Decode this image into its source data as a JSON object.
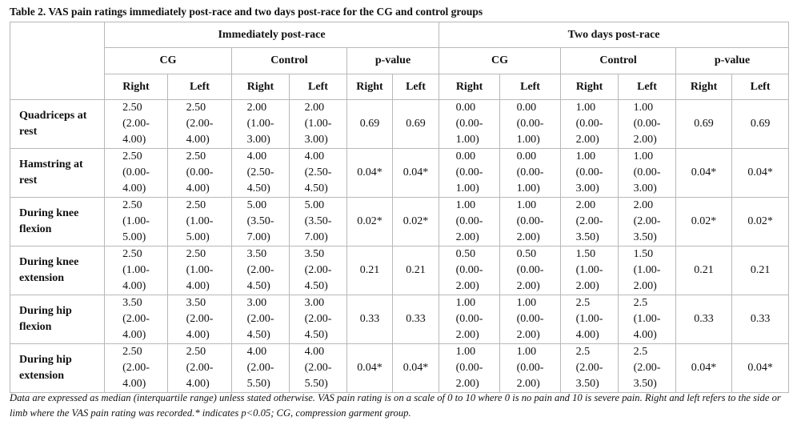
{
  "title": "Table 2. VAS pain ratings immediately post-race and two days post-race for the CG and control groups",
  "header": {
    "periods": [
      "Immediately post-race",
      "Two days post-race"
    ],
    "groups": [
      "CG",
      "Control",
      "p-value",
      "CG",
      "Control",
      "p-value"
    ],
    "sides": [
      "Right",
      "Left",
      "Right",
      "Left",
      "Right",
      "Left",
      "Right",
      "Left",
      "Right",
      "Left",
      "Right",
      "Left"
    ]
  },
  "rows": [
    {
      "label": [
        "Quadriceps at",
        "rest"
      ],
      "cells": [
        [
          "2.50",
          "(2.00-",
          "4.00)"
        ],
        [
          "2.50",
          "(2.00-",
          "4.00)"
        ],
        [
          "2.00",
          "(1.00-",
          "3.00)"
        ],
        [
          "2.00",
          "(1.00-",
          "3.00)"
        ],
        [
          "0.69"
        ],
        [
          "0.69"
        ],
        [
          "0.00",
          "(0.00-",
          "1.00)"
        ],
        [
          "0.00",
          "(0.00-",
          "1.00)"
        ],
        [
          "1.00",
          "(0.00-",
          "2.00)"
        ],
        [
          "1.00",
          "(0.00-",
          "2.00)"
        ],
        [
          "0.69"
        ],
        [
          "0.69"
        ]
      ]
    },
    {
      "label": [
        "Hamstring at",
        "rest"
      ],
      "cells": [
        [
          "2.50",
          "(0.00-",
          "4.00)"
        ],
        [
          "2.50",
          "(0.00-",
          "4.00)"
        ],
        [
          "4.00",
          "(2.50-",
          "4.50)"
        ],
        [
          "4.00",
          "(2.50-",
          "4.50)"
        ],
        [
          "0.04*"
        ],
        [
          "0.04*"
        ],
        [
          "0.00",
          "(0.00-",
          "1.00)"
        ],
        [
          "0.00",
          "(0.00-",
          "1.00)"
        ],
        [
          "1.00",
          "(0.00-",
          "3.00)"
        ],
        [
          "1.00",
          "(0.00-",
          "3.00)"
        ],
        [
          "0.04*"
        ],
        [
          "0.04*"
        ]
      ]
    },
    {
      "label": [
        "During knee",
        "flexion"
      ],
      "cells": [
        [
          "2.50",
          "(1.00-",
          "5.00)"
        ],
        [
          "2.50",
          "(1.00-",
          "5.00)"
        ],
        [
          "5.00",
          "(3.50-",
          "7.00)"
        ],
        [
          "5.00",
          "(3.50-",
          "7.00)"
        ],
        [
          "0.02*"
        ],
        [
          "0.02*"
        ],
        [
          "1.00",
          "(0.00-",
          "2.00)"
        ],
        [
          "1.00",
          "(0.00-",
          "2.00)"
        ],
        [
          "2.00",
          "(2.00-",
          "3.50)"
        ],
        [
          "2.00",
          "(2.00-",
          "3.50)"
        ],
        [
          "0.02*"
        ],
        [
          "0.02*"
        ]
      ]
    },
    {
      "label": [
        "During knee",
        "extension"
      ],
      "cells": [
        [
          "2.50",
          "(1.00-",
          "4.00)"
        ],
        [
          "2.50",
          "(1.00-",
          "4.00)"
        ],
        [
          "3.50",
          "(2.00-",
          "4.50)"
        ],
        [
          "3.50",
          "(2.00-",
          "4.50)"
        ],
        [
          "0.21"
        ],
        [
          "0.21"
        ],
        [
          "0.50",
          "(0.00-",
          "2.00)"
        ],
        [
          "0.50",
          "(0.00-",
          "2.00)"
        ],
        [
          "1.50",
          "(1.00-",
          "2.00)"
        ],
        [
          "1.50",
          "(1.00-",
          "2.00)"
        ],
        [
          "0.21"
        ],
        [
          "0.21"
        ]
      ]
    },
    {
      "label": [
        "During hip",
        "flexion"
      ],
      "cells": [
        [
          "3.50",
          "(2.00-",
          "4.00)"
        ],
        [
          "3.50",
          "(2.00-",
          "4.00)"
        ],
        [
          "3.00",
          "(2.00-",
          "4.50)"
        ],
        [
          "3.00",
          "(2.00-",
          "4.50)"
        ],
        [
          "0.33"
        ],
        [
          "0.33"
        ],
        [
          "1.00",
          "(0.00-",
          "2.00)"
        ],
        [
          "1.00",
          "(0.00-",
          "2.00)"
        ],
        [
          "2.5",
          "(1.00-",
          "4.00)"
        ],
        [
          "2.5",
          "(1.00-",
          "4.00)"
        ],
        [
          "0.33"
        ],
        [
          "0.33"
        ]
      ]
    },
    {
      "label": [
        "During hip",
        "extension"
      ],
      "cells": [
        [
          "2.50",
          "(2.00-",
          "4.00)"
        ],
        [
          "2.50",
          "(2.00-",
          "4.00)"
        ],
        [
          "4.00",
          "(2.00-",
          "5.50)"
        ],
        [
          "4.00",
          "(2.00-",
          "5.50)"
        ],
        [
          "0.04*"
        ],
        [
          "0.04*"
        ],
        [
          "1.00",
          "(0.00-",
          "2.00)"
        ],
        [
          "1.00",
          "(0.00-",
          "2.00)"
        ],
        [
          "2.5",
          "(2.00-",
          "3.50)"
        ],
        [
          "2.5",
          "(2.00-",
          "3.50)"
        ],
        [
          "0.04*"
        ],
        [
          "0.04*"
        ]
      ]
    }
  ],
  "footnote": "Data are expressed as median (interquartile range) unless stated otherwise. VAS pain rating is on a scale of 0 to 10 where 0 is no pain and 10 is severe pain. Right and left refers to the side or limb where the VAS pain rating was recorded.* indicates p<0.05; CG, compression garment group."
}
